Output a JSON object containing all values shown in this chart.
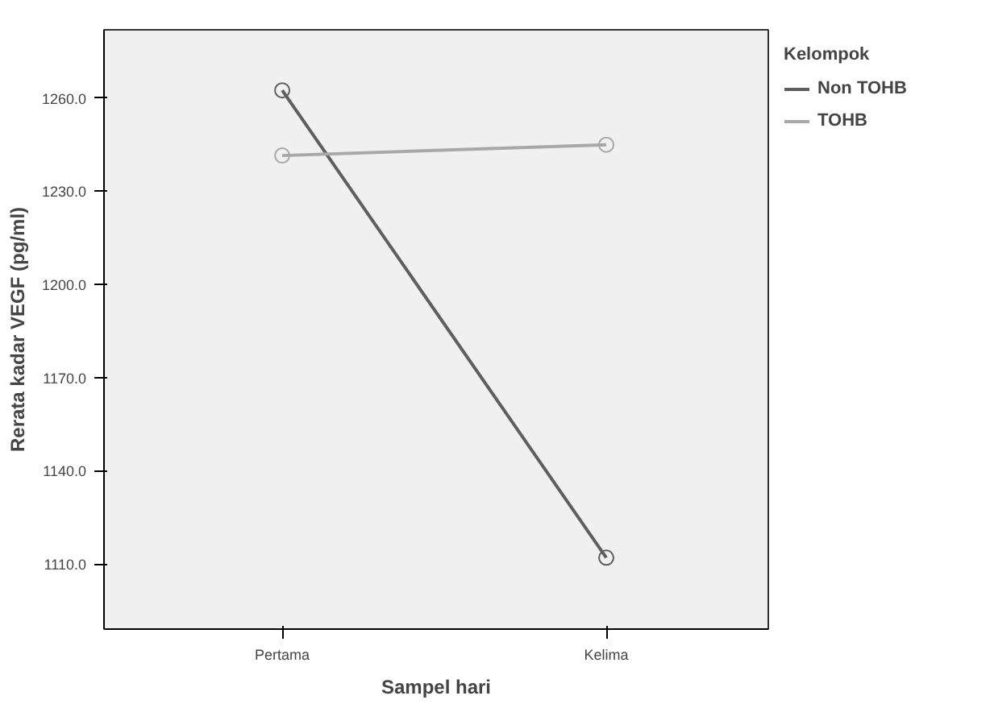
{
  "chart_data": {
    "type": "line",
    "xlabel": "Sampel hari",
    "ylabel": "Rerata kadar VEGF (pg/ml)",
    "legend_title": "Kelompok",
    "categories": [
      "Pertama",
      "Kelima"
    ],
    "series": [
      {
        "name": "Non TOHB",
        "color": "#5f5f5f",
        "values": [
          1262.5,
          1112
        ]
      },
      {
        "name": "TOHB",
        "color": "#a8a8a8",
        "values": [
          1241.5,
          1245
        ]
      }
    ],
    "ylim": [
      1089,
      1282
    ],
    "yticks": [
      {
        "value": 1110,
        "label": "1110.0"
      },
      {
        "value": 1140,
        "label": "1140.0"
      },
      {
        "value": 1170,
        "label": "1170.0"
      },
      {
        "value": 1200,
        "label": "1200.0"
      },
      {
        "value": 1230,
        "label": "1230.0"
      },
      {
        "value": 1260,
        "label": "1260.0"
      }
    ],
    "marker": "circle",
    "line_style": "solid",
    "legend": "top right",
    "grid": false
  }
}
